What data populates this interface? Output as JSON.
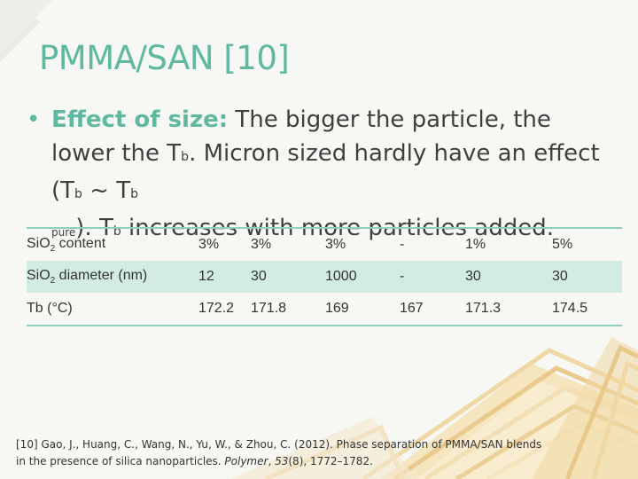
{
  "slide": {
    "title": "PMMA/SAN [10]",
    "bullet_symbol": "•",
    "bullet": {
      "lead": "Effect of size:",
      "part1": " The bigger the particle, the lower the T",
      "sub_b1": "b",
      "part2": ". Micron sized hardly have an effect (T",
      "sub_b2": "b",
      "part3": " ~ T",
      "sub_b3": "b",
      "line_break_sub": "pure",
      "part4": "). T",
      "sub_b4": "b",
      "part5": " increases with more particles added."
    }
  },
  "table": {
    "rows": [
      {
        "label_main": "SiO",
        "label_sub": "2",
        "label_rest": " content",
        "cells": [
          "3%",
          "3%",
          "3%",
          "-",
          "1%",
          "5%"
        ]
      },
      {
        "label_main": "SiO",
        "label_sub": "2",
        "label_rest": " diameter (nm)",
        "cells": [
          "12",
          "30",
          "1000",
          "-",
          "30",
          "30"
        ]
      },
      {
        "label_main": "Tb (°C)",
        "label_sub": "",
        "label_rest": "",
        "cells": [
          "172.2",
          "171.8",
          "169",
          "167",
          "171.3",
          "174.5"
        ]
      }
    ]
  },
  "reference": {
    "text1": "[10] Gao, J., Huang, C., Wang, N., Yu, W., & Zhou, C. (2012). Phase separation of PMMA/SAN blends in the presence of silica nanoparticles. ",
    "journal": "Polymer",
    "text2": ", ",
    "volume": "53",
    "text3": "(8), 1772–1782."
  },
  "colors": {
    "accent": "#5fb8a0",
    "row_shade": "#d2ece2",
    "text": "#3f3f3f",
    "deco_fill": "#f3dfae",
    "deco_stroke": "#e9c98b"
  }
}
